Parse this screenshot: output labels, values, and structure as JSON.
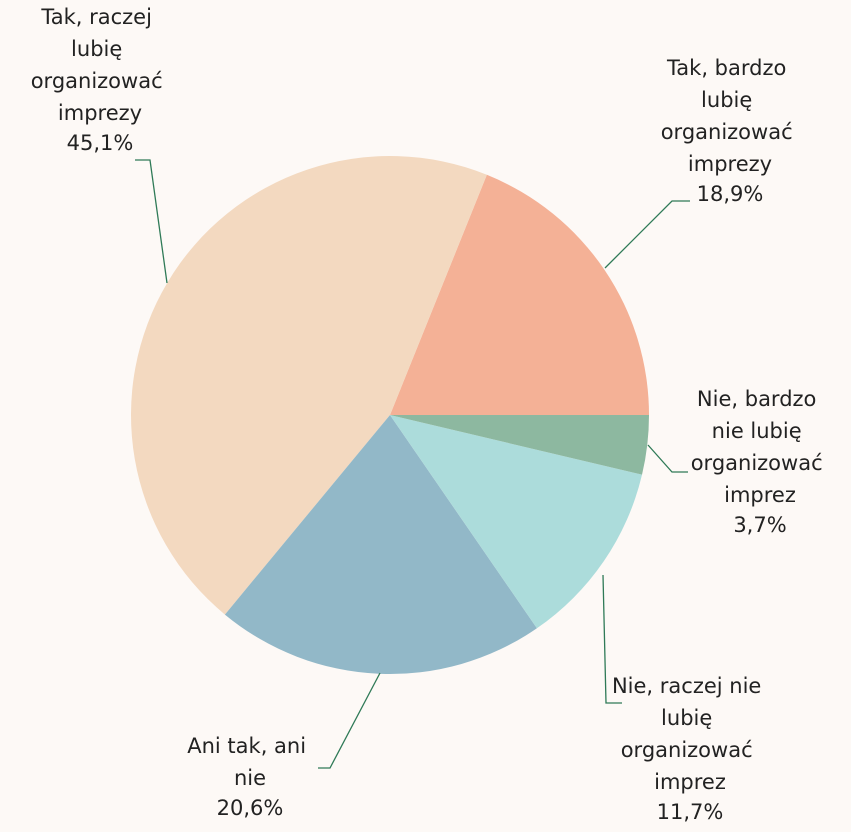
{
  "chart_data": {
    "type": "pie",
    "categories": [
      "Tak, bardzo lubię organizować imprezy",
      "Tak, raczej lubię organizować imprezy",
      "Ani tak, ani nie",
      "Nie, raczej nie lubię organizować imprez",
      "Nie, bardzo nie lubię organizować imprez"
    ],
    "values": [
      18.9,
      45.1,
      20.6,
      11.7,
      3.7
    ],
    "value_labels": [
      "18,9%",
      "45,1%",
      "20,6%",
      "11,7%",
      "3,7%"
    ],
    "colors": [
      "#f4b196",
      "#f3d9c0",
      "#92b8c8",
      "#acdcdb",
      "#8db8a0"
    ]
  }
}
